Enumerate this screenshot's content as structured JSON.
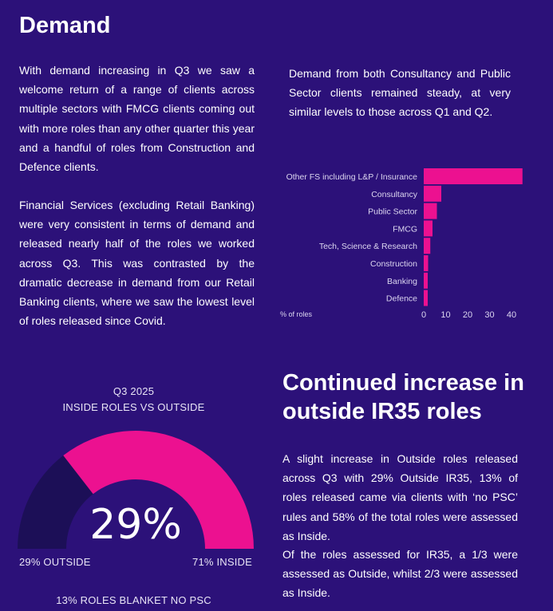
{
  "demand": {
    "title": "Demand",
    "para1": "With demand increasing in Q3 we saw a welcome return of a range of clients across multiple sectors with FMCG clients coming out with more roles than any other quarter this year and a handful of roles from Construction and Defence clients.",
    "para2": "Financial Services (excluding Retail Banking) were very consistent in terms of demand and released nearly half of the roles we worked across Q3. This was contrasted by the dramatic decrease in demand from our Retail Banking clients, where we saw the lowest level of roles released since Covid.",
    "para3": "Demand from both Consultancy and Public Sector clients remained steady, at very similar levels to those across Q1 and Q2."
  },
  "ir35": {
    "title": "Continued increase in outside IR35 roles",
    "para1": "A slight increase in Outside roles released across Q3 with 29% Outside IR35, 13% of roles released came via clients with ‘no PSC’ rules and 58% of the total roles were assessed as Inside.",
    "para2": "Of the roles assessed for IR35, a 1/3 were assessed as Outside, whilst 2/3 were assessed as Inside."
  },
  "colors": {
    "background": "#2c1179",
    "accent": "#ec1190",
    "gauge_dark": "#1c0f57",
    "text": "#ffffff"
  },
  "chart_data": [
    {
      "type": "bar",
      "orientation": "horizontal",
      "categories": [
        "Other FS including L&P / Insurance",
        "Consultancy",
        "Public Sector",
        "FMCG",
        "Tech, Science & Research",
        "Construction",
        "Banking",
        "Defence"
      ],
      "values": [
        45,
        8,
        6,
        4,
        3,
        2,
        1,
        1
      ],
      "xlabel": "% of roles",
      "xticks": [
        "0",
        "10",
        "20",
        "30",
        "40"
      ],
      "xlim": [
        0,
        45
      ],
      "grid": false
    },
    {
      "type": "pie",
      "style": "half-donut",
      "title": "Q3 2025",
      "subtitle": "INSIDE ROLES VS OUTSIDE",
      "center_label": "29%",
      "slices": [
        {
          "name": "OUTSIDE",
          "label": "29% OUTSIDE",
          "value": 29
        },
        {
          "name": "INSIDE",
          "label": "71% INSIDE",
          "value": 71
        }
      ],
      "footnote": "13% ROLES BLANKET NO PSC"
    }
  ]
}
